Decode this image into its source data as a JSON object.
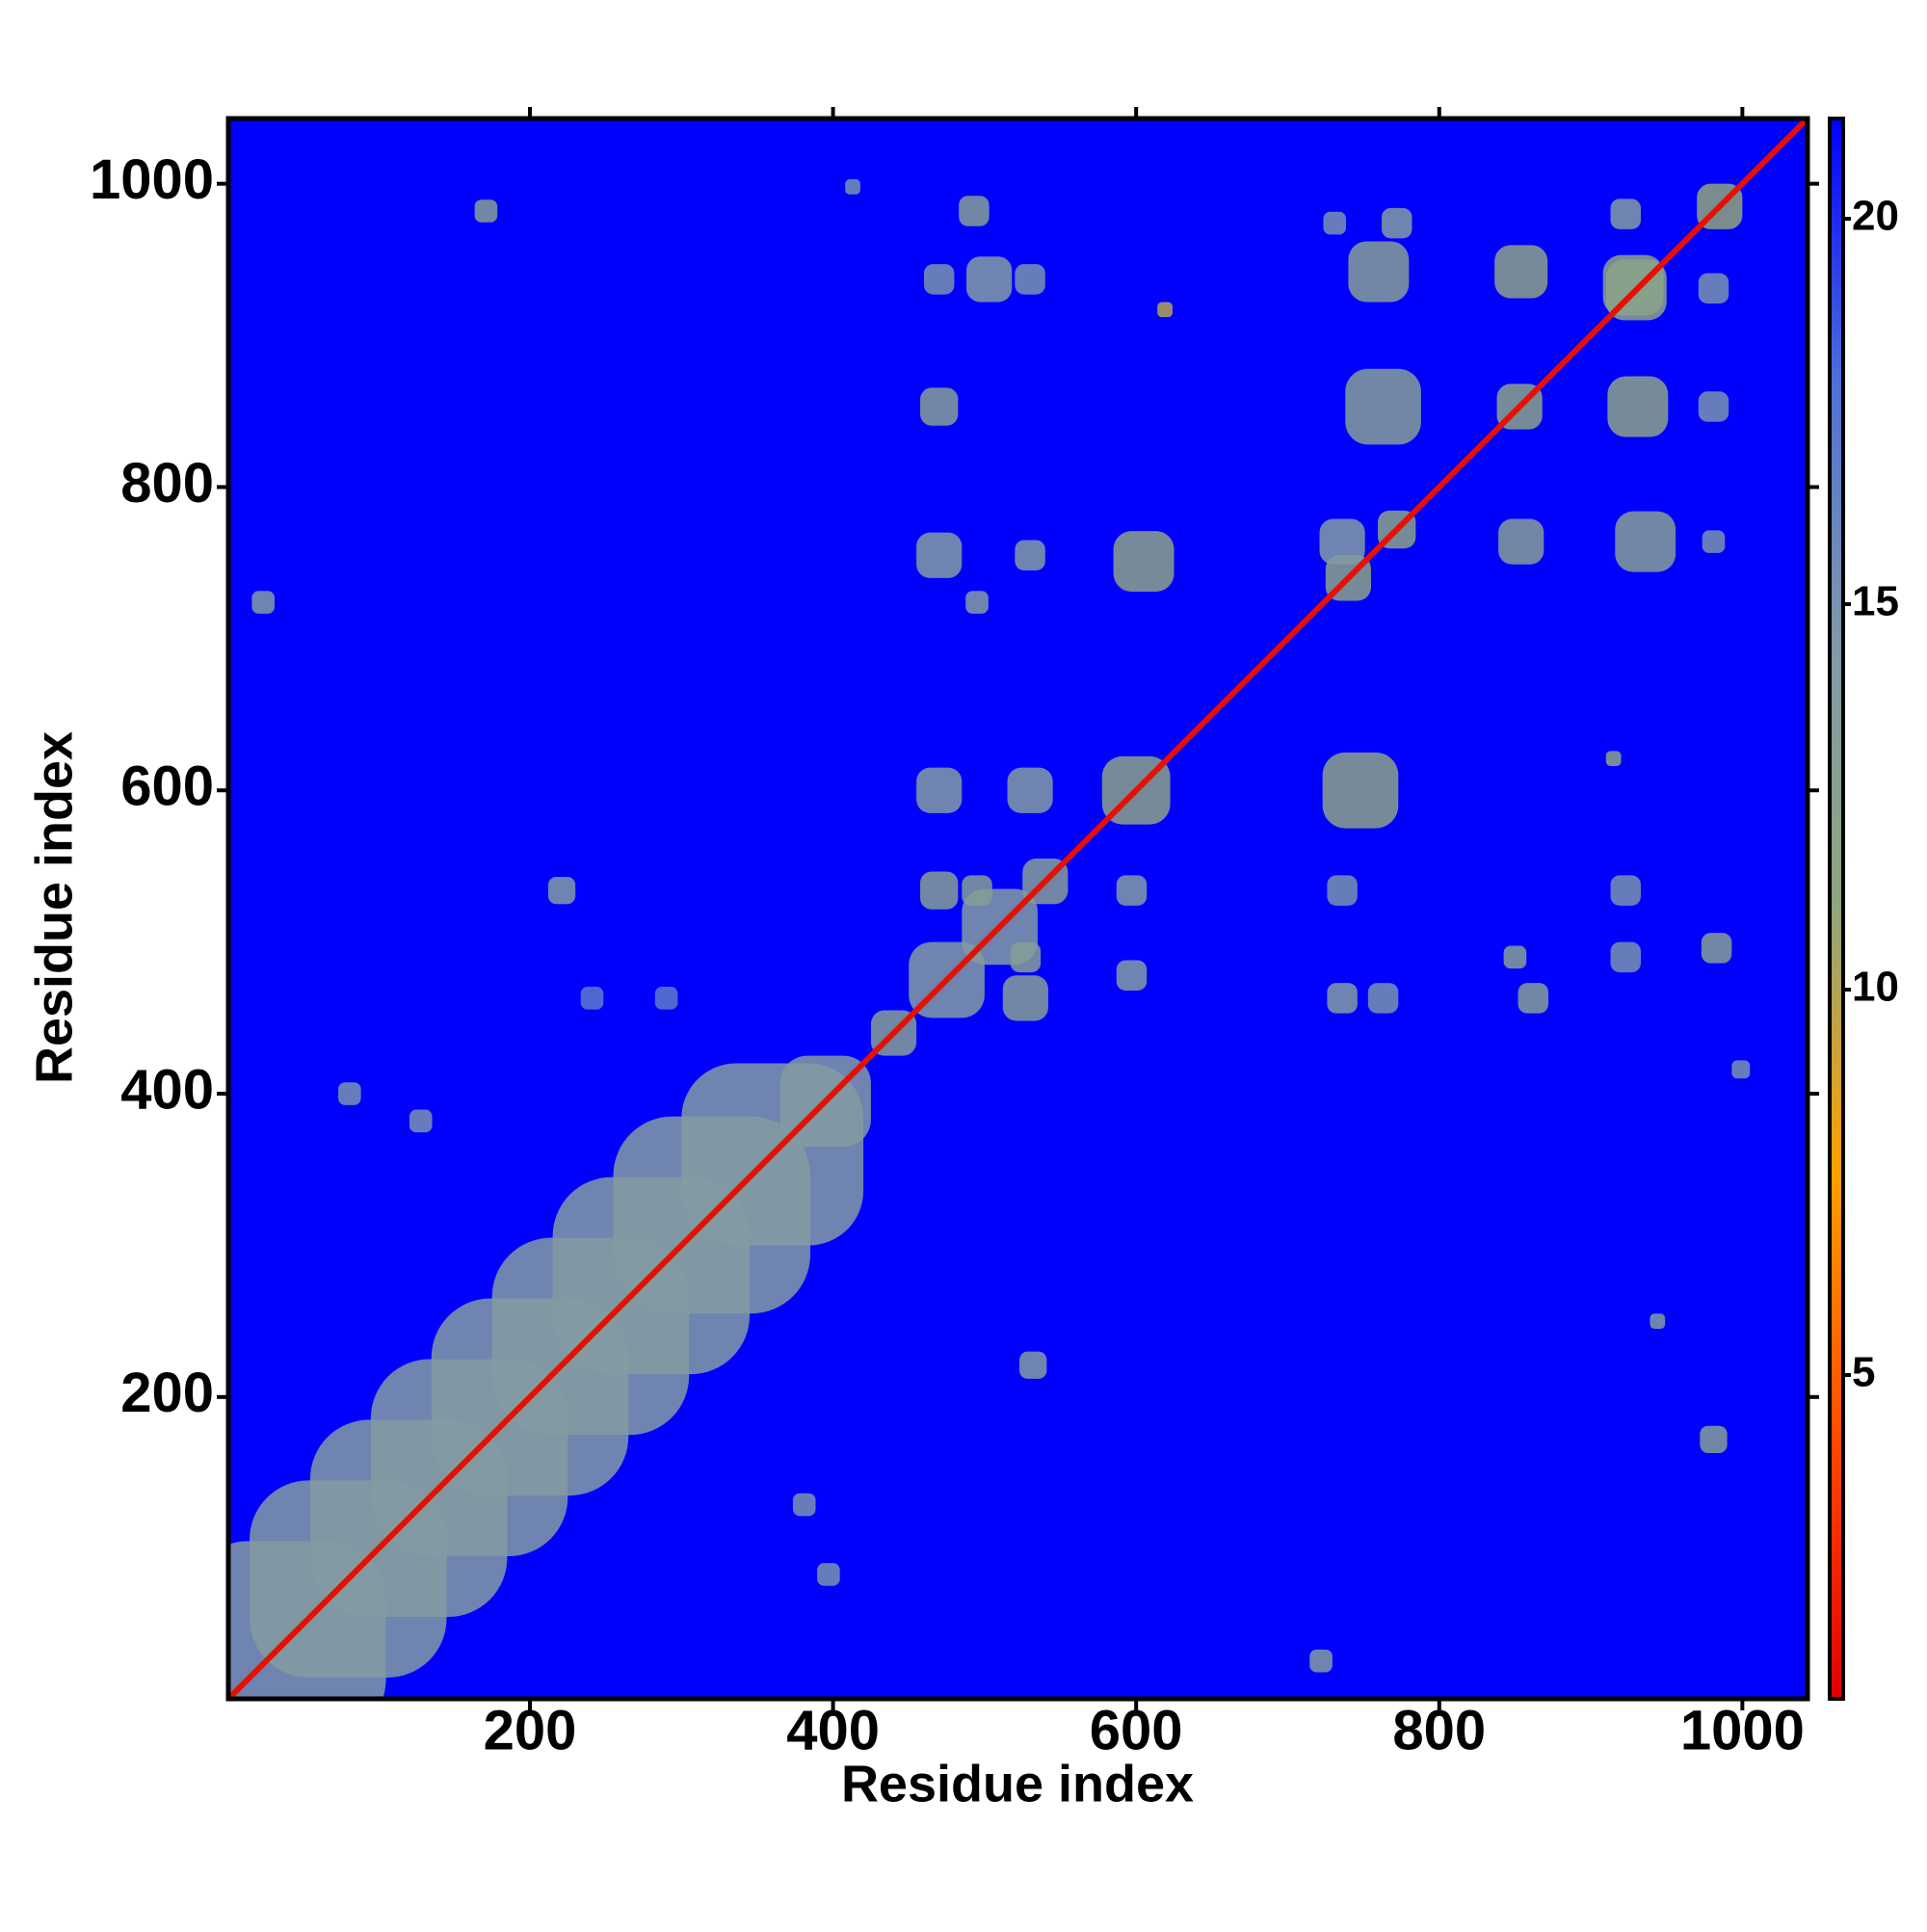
{
  "chart_data": {
    "type": "heatmap",
    "xlabel": "Residue index",
    "ylabel": "Residue index",
    "xlim": [
      1,
      1043
    ],
    "ylim": [
      1,
      1043
    ],
    "xticks": [
      200,
      400,
      600,
      800,
      1000
    ],
    "yticks": [
      200,
      400,
      600,
      800,
      1000
    ],
    "zlim": [
      0.8,
      21.3
    ],
    "zticks": [
      5,
      10,
      15,
      20
    ],
    "colors": [
      "#e00000",
      "#ff4a00",
      "#ffa000",
      "#8fa57c",
      "#8099a8",
      "#4f6fd8",
      "#0000ff"
    ],
    "cells": {
      "x": [
        40,
        80,
        120,
        160,
        200,
        240,
        280,
        320,
        360,
        395,
        440,
        475,
        510,
        540,
        600,
        740,
        772,
        853,
        930,
        985,
        171,
        24,
        413,
        493,
        221,
        81,
        128,
        381,
        397,
        532,
        722,
        981,
        983,
        999,
        619,
        605,
        748,
        854,
        928,
        931,
        763,
        760,
        854,
        936,
        736,
        772,
        731,
        923,
        981,
        981,
        981,
        470,
        503,
        470,
        530,
        470,
        530,
        495,
        470,
        530,
        470,
        495,
        527,
        527,
        597,
        597,
        736,
        736,
        763,
        850,
        862,
        923,
        923,
        915,
        944,
        241,
        290
      ],
      "y": [
        40,
        80,
        120,
        160,
        200,
        240,
        280,
        320,
        360,
        395,
        440,
        475,
        510,
        540,
        600,
        740,
        772,
        853,
        930,
        985,
        982,
        724,
        998,
        982,
        534,
        400,
        382,
        129,
        83,
        221,
        26,
        172,
        496,
        416,
        917,
        751,
        600,
        942,
        933,
        853,
        853,
        942,
        764,
        764,
        764,
        974,
        974,
        980,
        931,
        853,
        764,
        853,
        937,
        937,
        937,
        755,
        755,
        724,
        600,
        600,
        534,
        534,
        463,
        490,
        534,
        478,
        534,
        463,
        463,
        490,
        463,
        490,
        534,
        621,
        250,
        463,
        463
      ],
      "sizes": [
        130,
        130,
        130,
        130,
        130,
        130,
        130,
        130,
        120,
        60,
        30,
        50,
        50,
        30,
        45,
        30,
        25,
        30,
        40,
        30,
        15,
        15,
        10,
        20,
        18,
        15,
        15,
        15,
        15,
        18,
        15,
        18,
        20,
        12,
        10,
        40,
        50,
        35,
        40,
        40,
        50,
        40,
        30,
        40,
        30,
        20,
        15,
        20,
        20,
        20,
        15,
        25,
        30,
        20,
        20,
        30,
        20,
        15,
        30,
        30,
        25,
        20,
        30,
        20,
        20,
        20,
        20,
        20,
        20,
        15,
        20,
        20,
        20,
        10,
        10,
        15,
        15
      ],
      "values": [
        14,
        14,
        14,
        14,
        14,
        14,
        14,
        14,
        14,
        14,
        13,
        14,
        14,
        13,
        12,
        12,
        12,
        12,
        12,
        11,
        13,
        14,
        15,
        13,
        14,
        15,
        15,
        15,
        15,
        14,
        14,
        13,
        13,
        15,
        10,
        12,
        12,
        12,
        12,
        12,
        13,
        13,
        13,
        13,
        14,
        14,
        15,
        14,
        15,
        15,
        15,
        13,
        14,
        15,
        15,
        14,
        14,
        14,
        14,
        14,
        13,
        13,
        13,
        13,
        14,
        14,
        15,
        14,
        15,
        13,
        13,
        15,
        15,
        12,
        14,
        17,
        17
      ]
    },
    "diagonal": {
      "x": [
        1,
        1043
      ],
      "y": [
        1,
        1043
      ],
      "value": 1.5
    }
  }
}
